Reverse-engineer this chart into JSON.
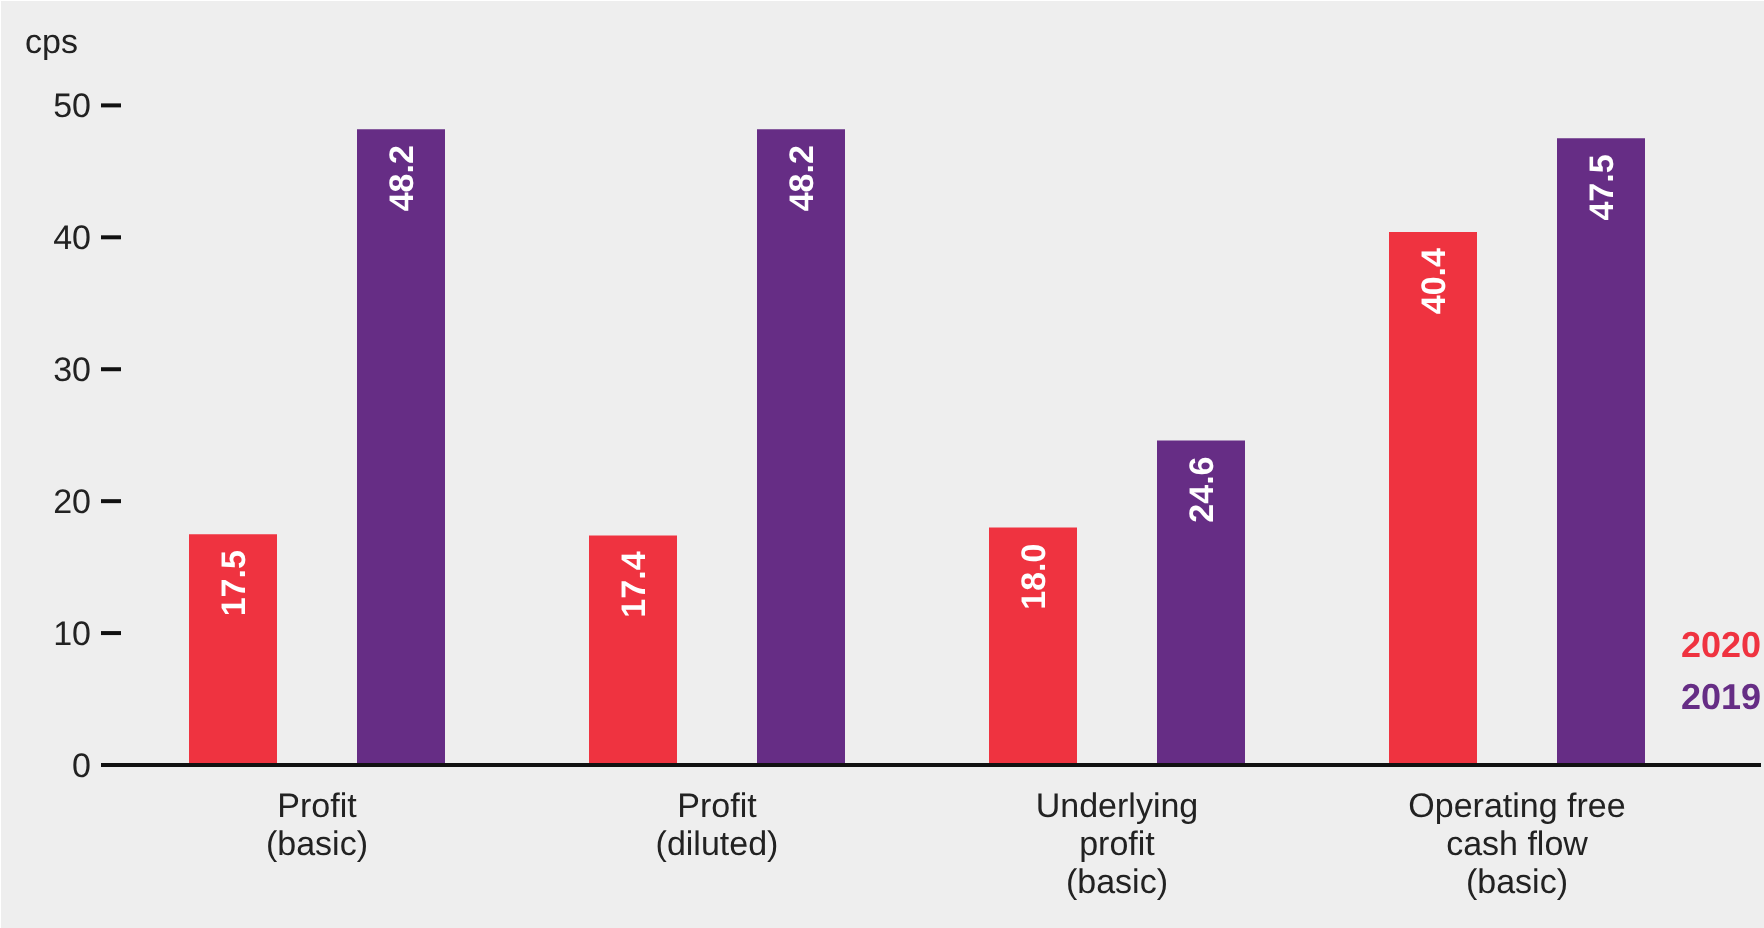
{
  "chart_data": {
    "type": "bar",
    "ylabel": "cps",
    "categories": [
      "Profit\n(basic)",
      "Profit\n(diluted)",
      "Underlying\nprofit\n(basic)",
      "Operating free\ncash flow\n(basic)"
    ],
    "series": [
      {
        "name": "2020",
        "color": "#ef3340",
        "values": [
          17.5,
          17.4,
          18.0,
          40.4
        ],
        "value_labels": [
          "17.5",
          "17.4",
          "18.0",
          "40.4"
        ]
      },
      {
        "name": "2019",
        "color": "#662d85",
        "values": [
          48.2,
          48.2,
          24.6,
          47.5
        ],
        "value_labels": [
          "48.2",
          "48.2",
          "24.6",
          "47.5"
        ]
      }
    ],
    "ylim": [
      0,
      52
    ],
    "yticks": [
      0,
      10,
      20,
      30,
      40,
      50
    ],
    "grid": false,
    "legend": "bottom right"
  }
}
